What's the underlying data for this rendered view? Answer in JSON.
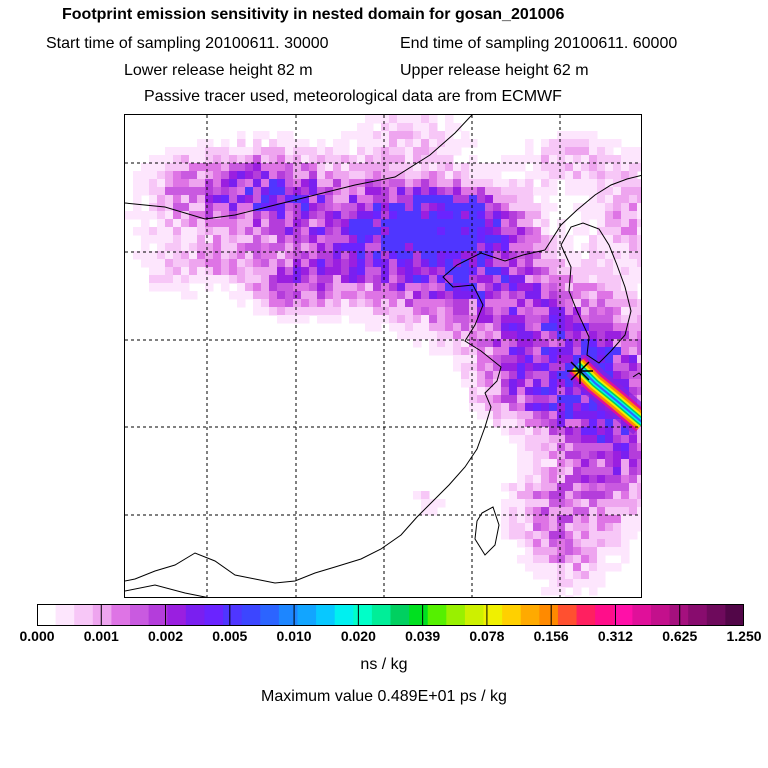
{
  "header": {
    "title": "Footprint emission sensitivity in nested domain for gosan_201006",
    "start_label": "Start time of sampling 20100611. 30000",
    "end_label": "End time of sampling 20100611. 60000",
    "lower_label": "Lower release height   82 m",
    "upper_label": "Upper release height   62 m",
    "tracer_label": "Passive tracer used, meteorological data are from ECMWF"
  },
  "chart_data": {
    "type": "heatmap",
    "title": "Footprint emission sensitivity in nested domain for gosan_201006",
    "colorbar": {
      "tick_labels": [
        "0.000",
        "0.001",
        "0.002",
        "0.005",
        "0.010",
        "0.020",
        "0.039",
        "0.078",
        "0.156",
        "0.312",
        "0.625",
        "1.250"
      ],
      "units": "ns / kg",
      "colors": [
        "#ffffff",
        "#fde6fd",
        "#f7c7f7",
        "#eea5ef",
        "#de74e5",
        "#c95ae0",
        "#b43ddb",
        "#9a1fe0",
        "#7a1ff0",
        "#6a24ff",
        "#4f36ff",
        "#3c46ff",
        "#2c64ff",
        "#1d86ff",
        "#12a5ff",
        "#08c8ff",
        "#00f0f0",
        "#00ffc8",
        "#00ee98",
        "#00d060",
        "#00e020",
        "#55f000",
        "#99f000",
        "#cdf000",
        "#f0f000",
        "#ffd000",
        "#ffaa00",
        "#ff8a00",
        "#ff5030",
        "#ff2060",
        "#ff0e8a",
        "#ff10a8",
        "#e0109a",
        "#c3108c",
        "#a5107e",
        "#880c6e",
        "#6e0a5c",
        "#520648"
      ]
    },
    "max_value_label": "Maximum value  0.489E+01 ps / kg",
    "receptor": "gosan"
  }
}
